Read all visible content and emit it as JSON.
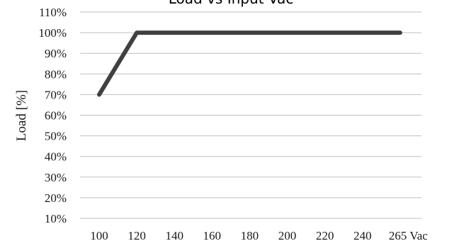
{
  "chart_data": {
    "type": "line",
    "title": "Load vs Input Vac",
    "xlabel": "",
    "ylabel": "Load [%]",
    "categories": [
      "100",
      "120",
      "140",
      "160",
      "180",
      "200",
      "220",
      "240",
      "265 Vac"
    ],
    "series": [
      {
        "values": [
          70,
          100,
          100,
          100,
          100,
          100,
          100,
          100,
          100
        ]
      }
    ],
    "y_ticks": [
      "10%",
      "20%",
      "30%",
      "40%",
      "50%",
      "60%",
      "70%",
      "80%",
      "90%",
      "100%",
      "110%"
    ],
    "ylim": [
      10,
      110
    ],
    "grid": true,
    "legend": "none",
    "colors": {
      "line": "#404040",
      "grid": "#bfbfbf",
      "text": "#1a1a1a"
    }
  }
}
